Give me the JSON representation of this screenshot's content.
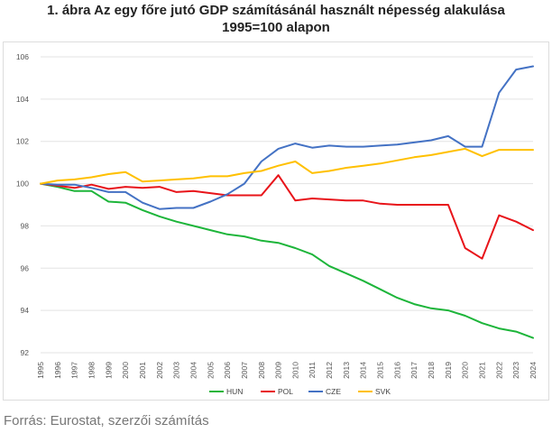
{
  "title_line1": "1. ábra Az egy főre jutó GDP számításánál használt népesség alakulása",
  "title_line2": "1995=100 alapon",
  "source": "Forrás: Eurostat, szerzői számítás",
  "chart_data": {
    "type": "line",
    "title": "1. ábra Az egy főre jutó GDP számításánál használt népesség alakulása 1995=100 alapon",
    "xlabel": "",
    "ylabel": "",
    "ylim": [
      92,
      106
    ],
    "yticks": [
      92,
      94,
      96,
      98,
      100,
      102,
      104,
      106
    ],
    "grid": true,
    "legend_position": "bottom",
    "x": [
      "1995",
      "1996",
      "1997",
      "1998",
      "1999",
      "2000",
      "2001",
      "2002",
      "2003",
      "2004",
      "2005",
      "2006",
      "2007",
      "2008",
      "2009",
      "2010",
      "2011",
      "2012",
      "2013",
      "2014",
      "2015",
      "2016",
      "2017",
      "2018",
      "2019",
      "2020",
      "2021",
      "2022",
      "2023",
      "2024"
    ],
    "series": [
      {
        "name": "HUN",
        "color": "#1db53a",
        "values": [
          100.0,
          99.85,
          99.65,
          99.65,
          99.15,
          99.1,
          98.75,
          98.45,
          98.2,
          98.0,
          97.8,
          97.6,
          97.5,
          97.3,
          97.2,
          96.95,
          96.65,
          96.1,
          95.75,
          95.4,
          95.0,
          94.6,
          94.3,
          94.1,
          94.0,
          93.75,
          93.4,
          93.15,
          93.0,
          92.7
        ]
      },
      {
        "name": "POL",
        "color": "#e8141a",
        "values": [
          100.0,
          99.9,
          99.8,
          99.95,
          99.75,
          99.85,
          99.8,
          99.85,
          99.6,
          99.65,
          99.55,
          99.45,
          99.45,
          99.45,
          100.4,
          99.2,
          99.3,
          99.25,
          99.2,
          99.2,
          99.05,
          99.0,
          99.0,
          99.0,
          99.0,
          96.95,
          96.45,
          98.5,
          98.2,
          97.8
        ]
      },
      {
        "name": "CZE",
        "color": "#4472c4",
        "values": [
          100.0,
          99.95,
          99.95,
          99.8,
          99.6,
          99.6,
          99.1,
          98.8,
          98.85,
          98.85,
          99.15,
          99.5,
          100.0,
          101.05,
          101.65,
          101.9,
          101.7,
          101.8,
          101.75,
          101.75,
          101.8,
          101.85,
          101.95,
          102.05,
          102.25,
          101.75,
          101.75,
          104.3,
          105.4,
          105.55
        ]
      },
      {
        "name": "SVK",
        "color": "#ffc000",
        "values": [
          100.0,
          100.15,
          100.2,
          100.3,
          100.45,
          100.55,
          100.1,
          100.15,
          100.2,
          100.25,
          100.35,
          100.35,
          100.5,
          100.6,
          100.85,
          101.05,
          100.5,
          100.6,
          100.75,
          100.85,
          100.95,
          101.1,
          101.25,
          101.35,
          101.5,
          101.65,
          101.3,
          101.6,
          101.6,
          101.6
        ]
      }
    ]
  }
}
